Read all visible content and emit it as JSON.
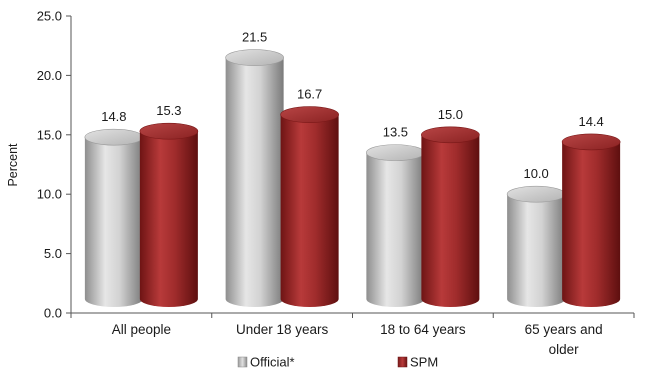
{
  "chart_data": {
    "type": "bar",
    "ylabel": "Percent",
    "ylim": [
      0,
      25
    ],
    "yticks": [
      "0.0",
      "5.0",
      "10.0",
      "15.0",
      "20.0",
      "25.0"
    ],
    "categories": [
      [
        "All people"
      ],
      [
        "Under 18 years"
      ],
      [
        "18 to 64 years"
      ],
      [
        "65 years and",
        "older"
      ]
    ],
    "series": [
      {
        "name": "Official*",
        "values": [
          14.8,
          21.5,
          13.5,
          10.0
        ],
        "labels": [
          "14.8",
          "21.5",
          "13.5",
          "10.0"
        ],
        "color": "#bfbfbf"
      },
      {
        "name": "SPM",
        "values": [
          15.3,
          16.7,
          15.0,
          14.4
        ],
        "labels": [
          "15.3",
          "16.7",
          "15.0",
          "14.4"
        ],
        "color": "#9b2a2a"
      }
    ],
    "legend": "bottom",
    "grid": false,
    "style": "3d-cylinder"
  }
}
